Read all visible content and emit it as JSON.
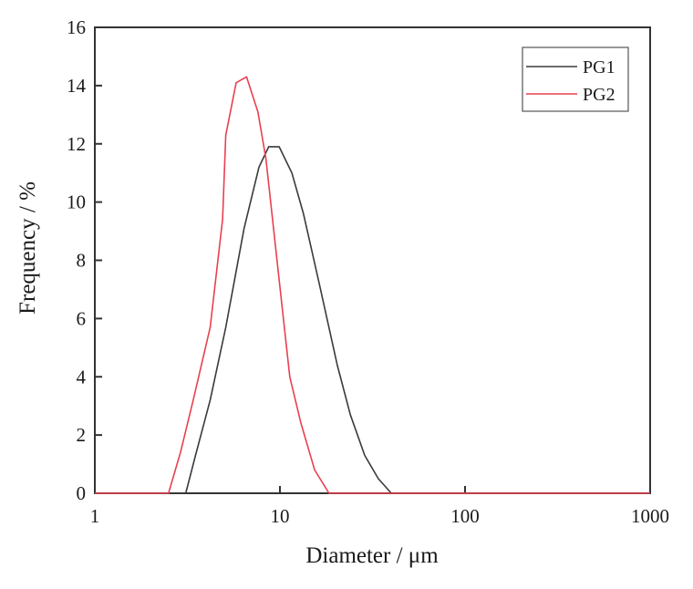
{
  "chart_data": {
    "type": "line",
    "title": "",
    "xlabel": "Diameter / μm",
    "ylabel": "Frequency / %",
    "xscale": "log",
    "xlim": [
      1,
      1000
    ],
    "ylim": [
      0,
      16
    ],
    "x_ticks": [
      "1",
      "10",
      "100",
      "1000"
    ],
    "y_ticks": [
      "0",
      "2",
      "4",
      "6",
      "8",
      "10",
      "12",
      "14",
      "16"
    ],
    "grid": false,
    "legend_position": "upper right",
    "series": [
      {
        "name": "PG1",
        "color": "#3a3a3a",
        "x": [
          3.1,
          3.5,
          4.2,
          5.1,
          6.4,
          7.7,
          8.7,
          9.9,
          11.6,
          13.4,
          16.3,
          20.4,
          24.0,
          28.7,
          34.0,
          40.0
        ],
        "y": [
          0,
          1.3,
          3.2,
          5.7,
          9.1,
          11.2,
          11.9,
          11.9,
          11.0,
          9.6,
          7.2,
          4.4,
          2.7,
          1.3,
          0.5,
          0
        ]
      },
      {
        "name": "PG2",
        "color": "#e8404f",
        "x": [
          2.5,
          2.9,
          3.4,
          4.2,
          4.9,
          5.1,
          5.8,
          6.6,
          7.6,
          8.4,
          9.8,
          11.3,
          13.0,
          15.4,
          18.4
        ],
        "y": [
          0,
          1.4,
          3.2,
          5.7,
          9.4,
          12.3,
          14.1,
          14.3,
          13.1,
          11.5,
          7.6,
          4.0,
          2.4,
          0.8,
          0
        ]
      }
    ]
  },
  "legend": {
    "items": [
      {
        "label": "PG1",
        "color": "#3a3a3a"
      },
      {
        "label": "PG2",
        "color": "#e8404f"
      }
    ]
  },
  "axes": {
    "xlabel": "Diameter / μm",
    "ylabel": "Frequency / %",
    "x_tick_labels": [
      "1",
      "10",
      "100",
      "1000"
    ],
    "y_tick_labels": [
      "0",
      "2",
      "4",
      "6",
      "8",
      "10",
      "12",
      "14",
      "16"
    ]
  }
}
